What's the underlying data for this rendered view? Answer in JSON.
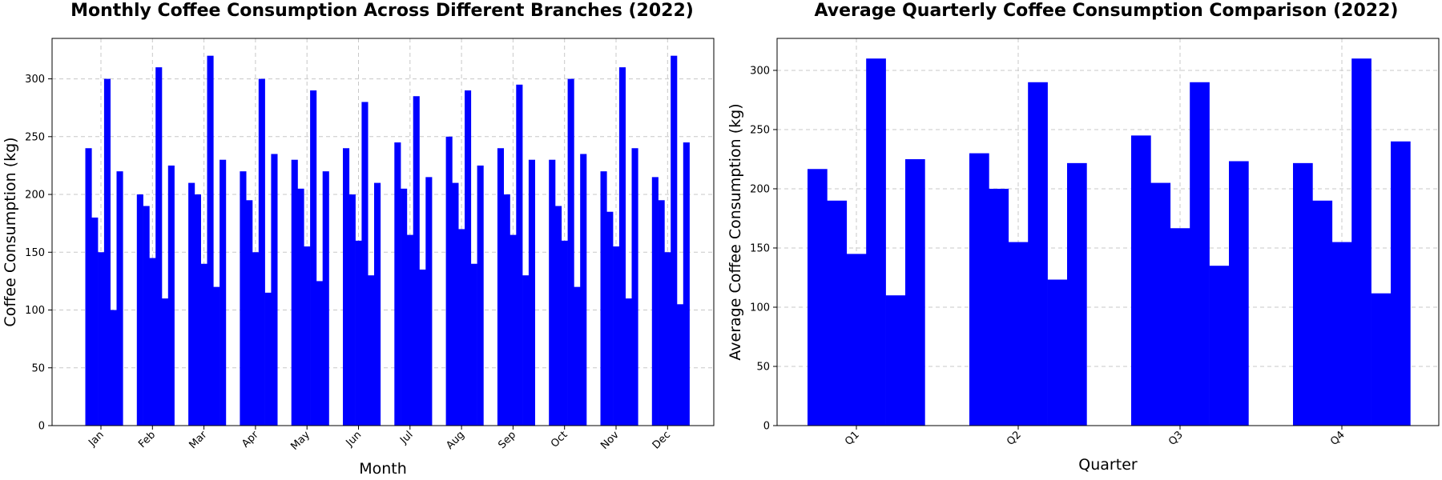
{
  "chart_data": [
    {
      "type": "bar",
      "title": "Monthly Coffee Consumption Across Different Branches (2022)",
      "xlabel": "Month",
      "ylabel": "Coffee Consumption (kg)",
      "categories": [
        "Jan",
        "Feb",
        "Mar",
        "Apr",
        "May",
        "Jun",
        "Jul",
        "Aug",
        "Sep",
        "Oct",
        "Nov",
        "Dec"
      ],
      "ylim": [
        0,
        335
      ],
      "yticks": [
        0,
        50,
        100,
        150,
        200,
        250,
        300
      ],
      "grid": true,
      "bar_color": "#0000ff",
      "series": [
        {
          "values": [
            240,
            200,
            210,
            220,
            230,
            240,
            245,
            250,
            240,
            230,
            220,
            215
          ]
        },
        {
          "values": [
            180,
            190,
            200,
            195,
            205,
            200,
            205,
            210,
            200,
            190,
            185,
            195
          ]
        },
        {
          "values": [
            150,
            145,
            140,
            150,
            155,
            160,
            165,
            170,
            165,
            160,
            155,
            150
          ]
        },
        {
          "values": [
            300,
            310,
            320,
            300,
            290,
            280,
            285,
            290,
            295,
            300,
            310,
            320
          ]
        },
        {
          "values": [
            100,
            110,
            120,
            115,
            125,
            130,
            135,
            140,
            130,
            120,
            110,
            105
          ]
        },
        {
          "values": [
            220,
            225,
            230,
            235,
            220,
            210,
            215,
            225,
            230,
            235,
            240,
            245
          ]
        }
      ]
    },
    {
      "type": "bar",
      "title": "Average Quarterly Coffee Consumption Comparison (2022)",
      "xlabel": "Quarter",
      "ylabel": "Average Coffee Consumption (kg)",
      "categories": [
        "Q1",
        "Q2",
        "Q3",
        "Q4"
      ],
      "ylim": [
        0,
        327
      ],
      "yticks": [
        0,
        50,
        100,
        150,
        200,
        250,
        300
      ],
      "grid": true,
      "bar_color": "#0000ff",
      "series": [
        {
          "values": [
            216.7,
            230,
            245,
            221.7
          ]
        },
        {
          "values": [
            190,
            200,
            205,
            190
          ]
        },
        {
          "values": [
            145,
            155,
            166.7,
            155
          ]
        },
        {
          "values": [
            310,
            290,
            290,
            310
          ]
        },
        {
          "values": [
            110,
            123.3,
            135,
            111.7
          ]
        },
        {
          "values": [
            225,
            221.7,
            223.3,
            240
          ]
        }
      ]
    }
  ]
}
